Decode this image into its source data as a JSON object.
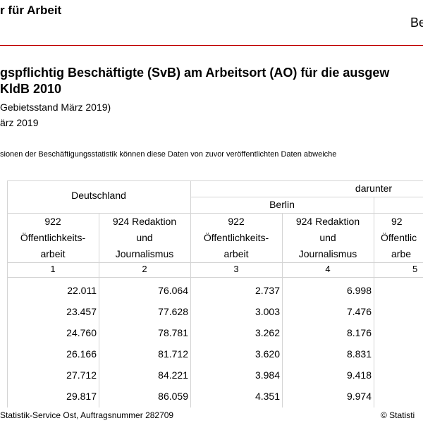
{
  "header": {
    "org_name": "r für Arbeit",
    "right_text": "Be"
  },
  "title": {
    "line1": "gspflichtig Beschäftigte (SvB) am Arbeitsort (AO) für die ausgew",
    "line2": "KldB 2010"
  },
  "subtitle": {
    "line1": "Gebietsstand März 2019)",
    "line2": "ärz 2019"
  },
  "note": "sionen der Beschäftigungsstatistik können diese Daten von zuvor veröffentlichten Daten abweiche",
  "table": {
    "group_deutschland": "Deutschland",
    "group_darunter": "darunter",
    "subgroup_berlin": "Berlin",
    "columns": [
      {
        "lines": [
          "922",
          "Öffentlichkeits-",
          "arbeit"
        ],
        "num": "1"
      },
      {
        "lines": [
          "924 Redaktion",
          "und",
          "Journalismus"
        ],
        "num": "2"
      },
      {
        "lines": [
          "922",
          "Öffentlichkeits-",
          "arbeit"
        ],
        "num": "3"
      },
      {
        "lines": [
          "924 Redaktion",
          "und",
          "Journalismus"
        ],
        "num": "4"
      },
      {
        "lines": [
          "92",
          "Öffentlic",
          "arbe"
        ],
        "num": "5"
      }
    ],
    "rows": [
      [
        "22.011",
        "76.064",
        "2.737",
        "6.998"
      ],
      [
        "23.457",
        "77.628",
        "3.003",
        "7.476"
      ],
      [
        "24.760",
        "78.781",
        "3.262",
        "8.176"
      ],
      [
        "26.166",
        "81.712",
        "3.620",
        "8.831"
      ],
      [
        "27.712",
        "84.221",
        "3.984",
        "9.418"
      ],
      [
        "29.817",
        "86.059",
        "4.351",
        "9.974"
      ]
    ]
  },
  "footer": {
    "left": "Statistik-Service Ost, Auftragsnummer 282709",
    "right": "© Statisti"
  }
}
